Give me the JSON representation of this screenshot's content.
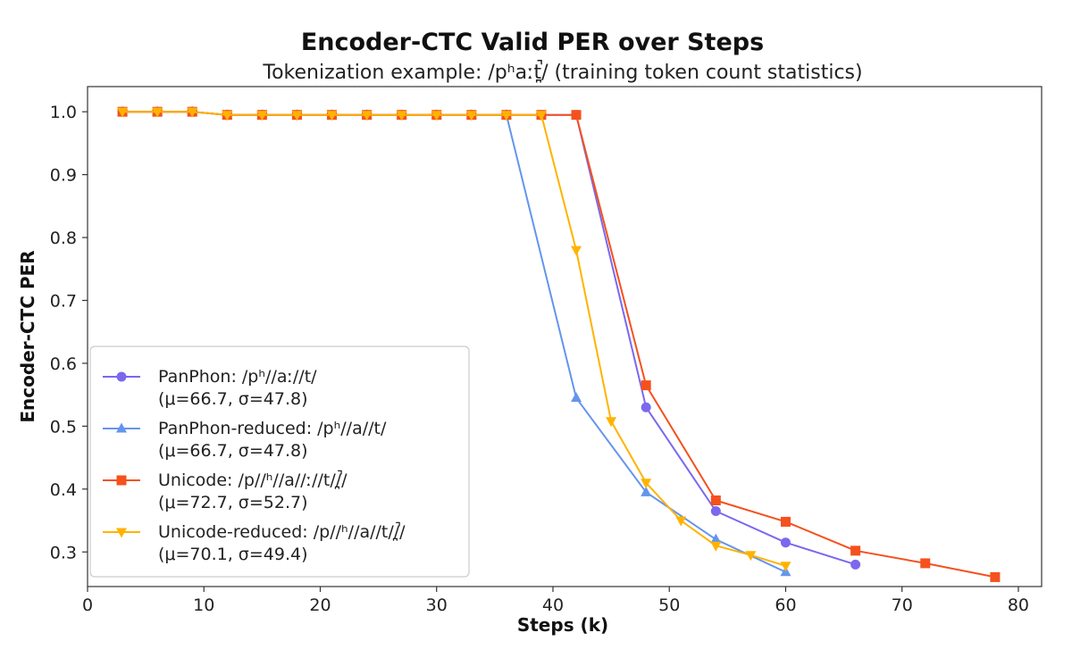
{
  "chart_data": {
    "type": "line",
    "title": "Encoder-CTC Valid PER over Steps",
    "subtitle": "Tokenization example: /pʰaːt̪̚/ (training token count statistics)",
    "xlabel": "Steps (k)",
    "ylabel": "Encoder-CTC PER",
    "xlim": [
      0,
      82
    ],
    "ylim": [
      0.245,
      1.04
    ],
    "xticks": [
      0,
      10,
      20,
      30,
      40,
      50,
      60,
      70,
      80
    ],
    "yticks": [
      0.3,
      0.4,
      0.5,
      0.6,
      0.7,
      0.8,
      0.9,
      1.0
    ],
    "ytick_labels": [
      "0.3",
      "0.4",
      "0.5",
      "0.6",
      "0.7",
      "0.8",
      "0.9",
      "1.0"
    ],
    "grid": false,
    "legend_position": "lower-left",
    "series": [
      {
        "name": "PanPhon: /pʰ//aː//t/",
        "stats": "(μ=66.7, σ=47.8)",
        "color": "#7b68ee",
        "marker": "circle",
        "x": [
          3,
          6,
          9,
          12,
          15,
          18,
          21,
          24,
          27,
          30,
          33,
          36,
          39,
          42,
          48,
          54,
          60,
          66
        ],
        "y": [
          1.0,
          1.0,
          1.0,
          0.995,
          0.995,
          0.995,
          0.995,
          0.995,
          0.995,
          0.995,
          0.995,
          0.995,
          0.995,
          0.995,
          0.53,
          0.365,
          0.315,
          0.28
        ]
      },
      {
        "name": "PanPhon-reduced: /pʰ//a//t/",
        "stats": "(μ=66.7, σ=47.8)",
        "color": "#6495ed",
        "marker": "triangle-up",
        "x": [
          3,
          6,
          9,
          12,
          15,
          18,
          21,
          24,
          27,
          30,
          33,
          36,
          42,
          48,
          54,
          60
        ],
        "y": [
          1.0,
          1.0,
          1.0,
          0.995,
          0.995,
          0.995,
          0.995,
          0.995,
          0.995,
          0.995,
          0.995,
          0.995,
          0.545,
          0.395,
          0.32,
          0.268
        ]
      },
      {
        "name": "Unicode: /p//ʰ//a//ː//t//̪̚/",
        "stats": "(μ=72.7, σ=52.7)",
        "color": "#f4511e",
        "marker": "square",
        "x": [
          3,
          6,
          9,
          12,
          15,
          18,
          21,
          24,
          27,
          30,
          33,
          36,
          39,
          42,
          48,
          54,
          60,
          66,
          72,
          78
        ],
        "y": [
          1.0,
          1.0,
          1.0,
          0.995,
          0.995,
          0.995,
          0.995,
          0.995,
          0.995,
          0.995,
          0.995,
          0.995,
          0.995,
          0.995,
          0.565,
          0.382,
          0.348,
          0.302,
          0.282,
          0.26
        ]
      },
      {
        "name": "Unicode-reduced: /p//ʰ//a//t//̪̚/",
        "stats": "(μ=70.1, σ=49.4)",
        "color": "#ffb300",
        "marker": "triangle-down",
        "x": [
          3,
          6,
          9,
          12,
          15,
          18,
          21,
          24,
          27,
          30,
          33,
          36,
          39,
          42,
          45,
          48,
          51,
          54,
          57,
          60
        ],
        "y": [
          1.0,
          1.0,
          1.0,
          0.995,
          0.995,
          0.995,
          0.995,
          0.995,
          0.995,
          0.995,
          0.995,
          0.995,
          0.995,
          0.78,
          0.508,
          0.41,
          0.35,
          0.31,
          0.295,
          0.278
        ]
      }
    ]
  }
}
